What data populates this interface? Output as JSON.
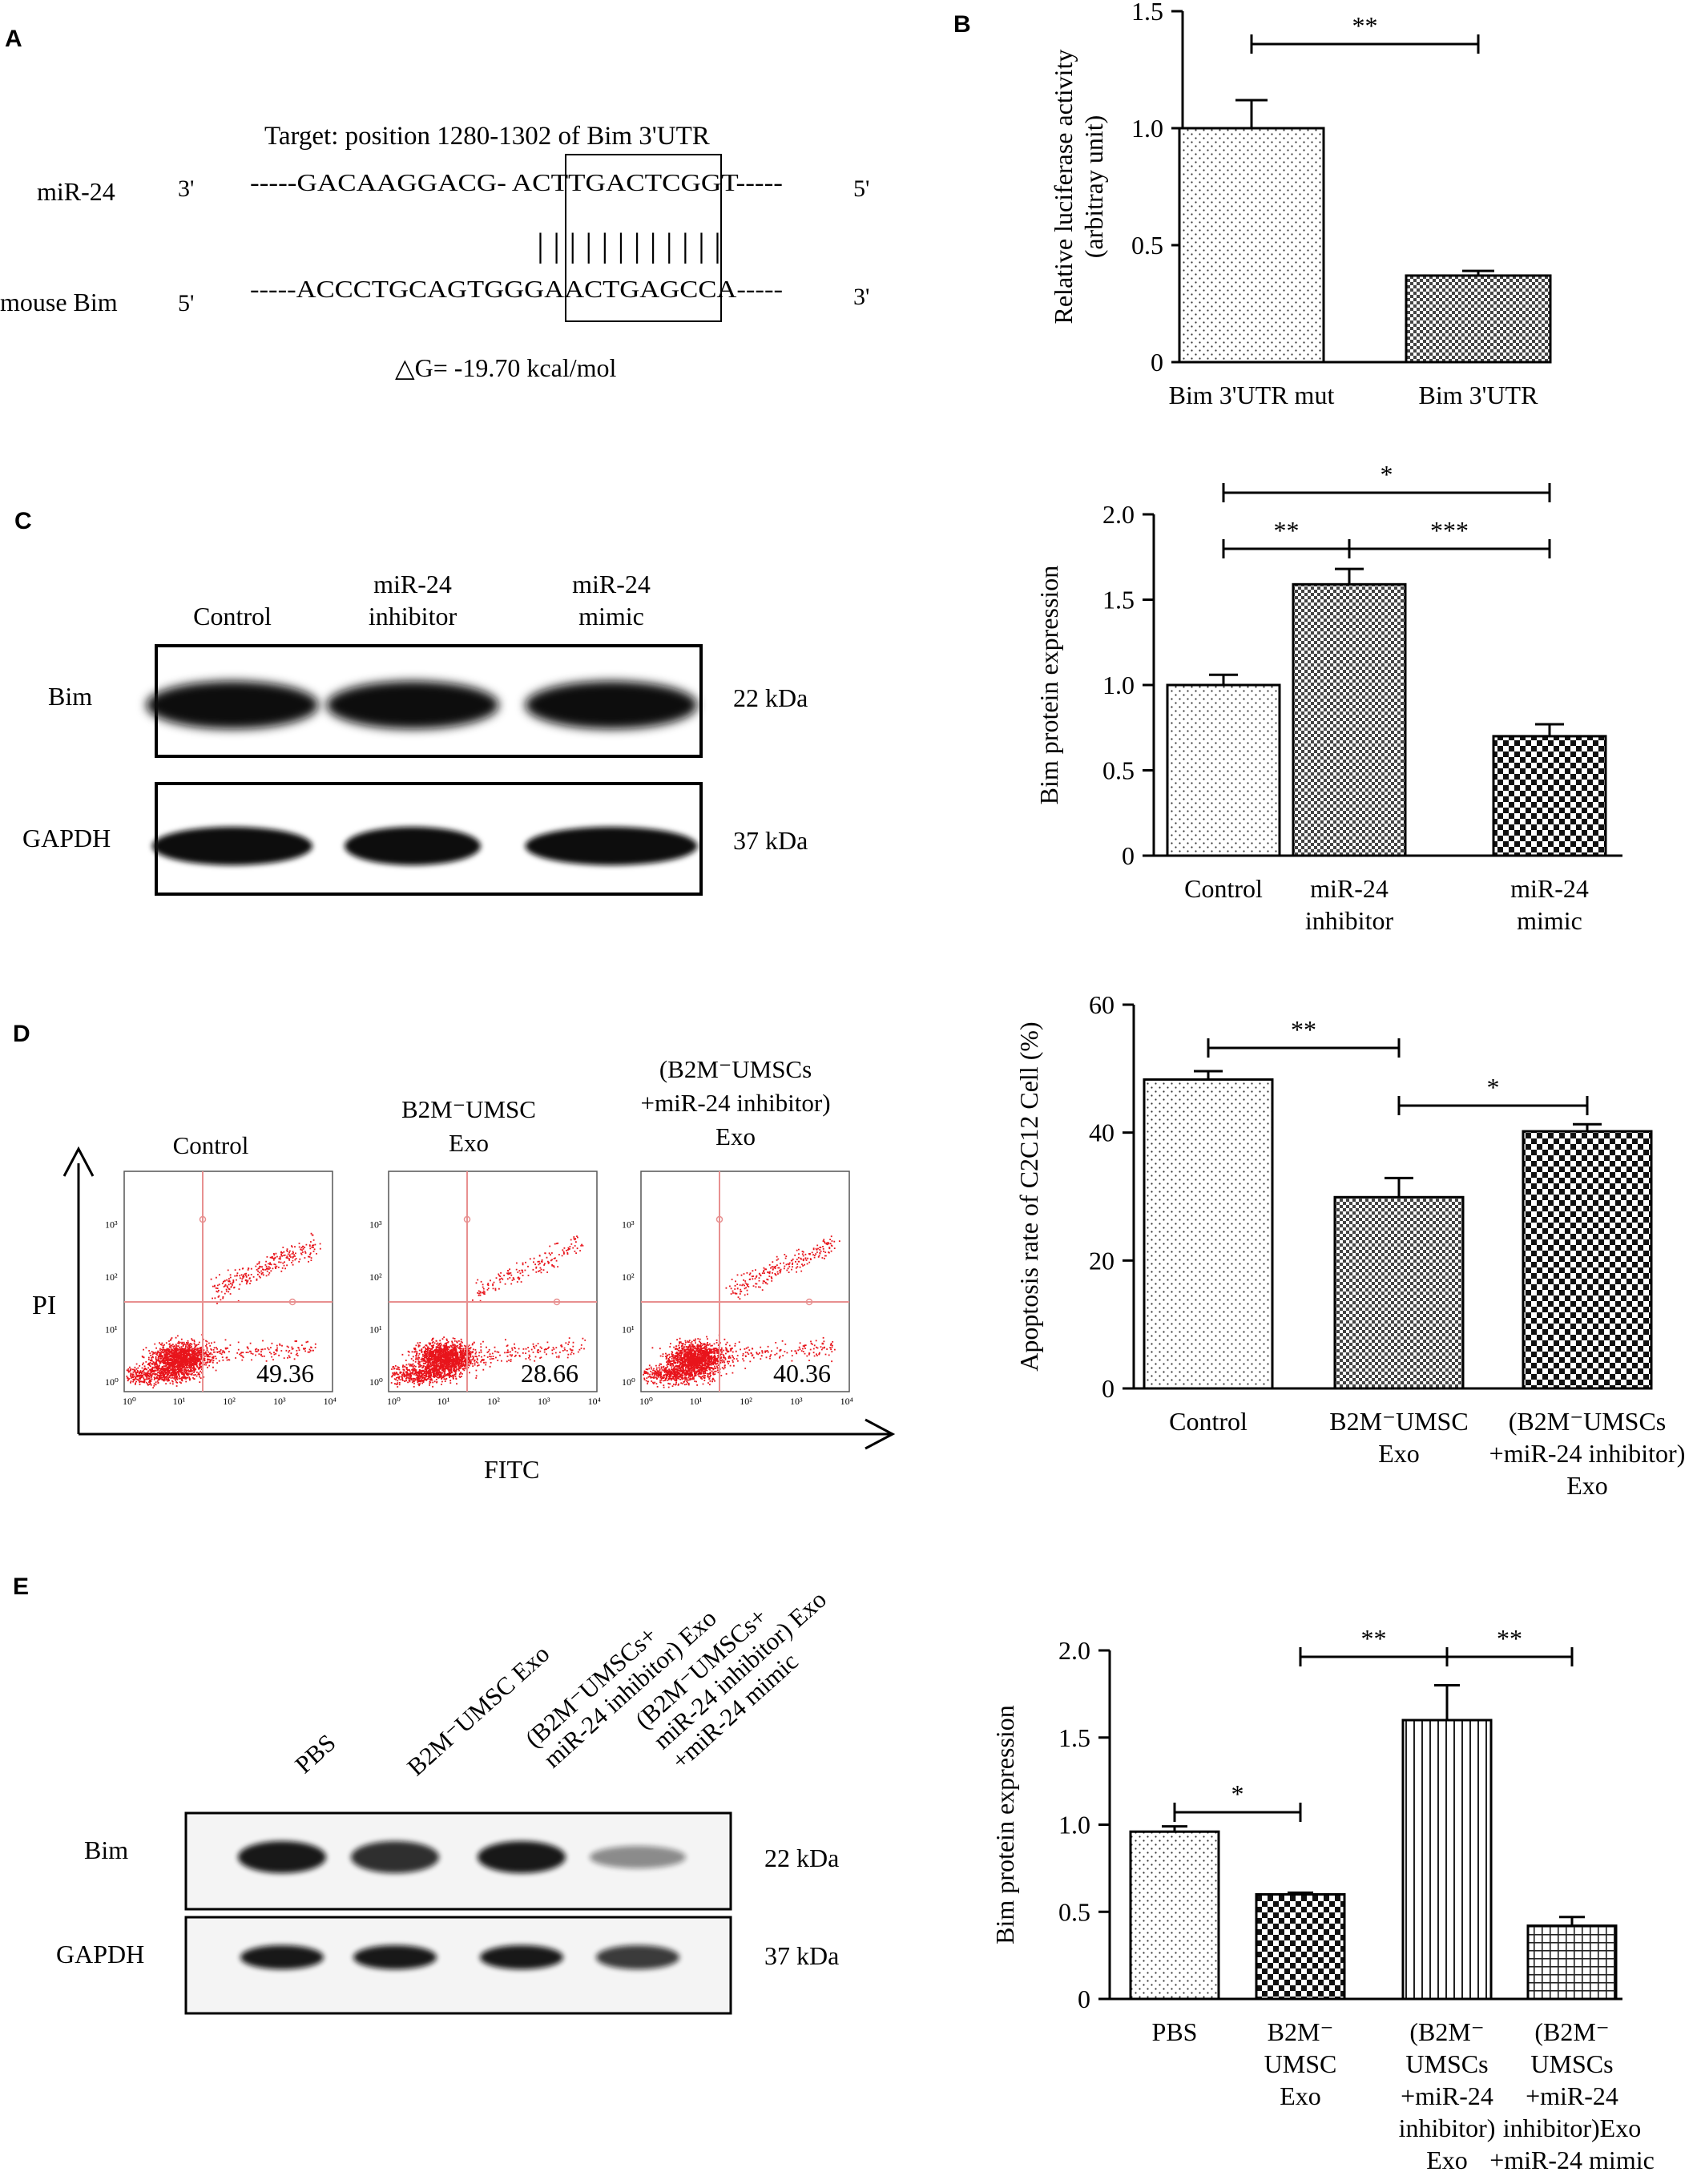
{
  "panels": {
    "A": {
      "label": "A",
      "target": "Target: position  1280-1302  of Bim 3'UTR",
      "mir_name": "miR-24",
      "mir_end_left": "3'",
      "mir_seq": "-----GACAAGGACG-  ACTTGACTCGGT-----",
      "mir_end_right": "5'",
      "bim_name": "mouse Bim",
      "bim_end_left": "5'",
      "bim_seq": "-----ACCCTGCAGTGGGAACTGAGCCA-----",
      "bim_end_right": "3'",
      "pairing": "|  |  |  |  |  |  |  |  |  |  |  |",
      "dg": "△G= -19.70  kcal/mol"
    },
    "C_blot": {
      "label": "C",
      "lanes": [
        "Control",
        "miR-24\ninhibitor",
        "miR-24\nmimic"
      ],
      "rows": [
        "Bim",
        "GAPDH"
      ],
      "sizes": [
        "22 kDa",
        "37 kDa"
      ],
      "band_color": "#111111"
    },
    "D_flow": {
      "label": "D",
      "titles": [
        "Control",
        "B2M⁻UMSC\nExo",
        "(B2M⁻UMSCs\n+miR-24  inhibitor)\nExo"
      ],
      "values": [
        "49.36",
        "28.66",
        "40.36"
      ],
      "ylabel": "PI",
      "xlabel": "FITC",
      "ticks": [
        "10⁰",
        "10¹",
        "10²",
        "10³",
        "10⁴"
      ],
      "dot_color": "#e8141b",
      "gate_color": "#e89090"
    },
    "E_blot": {
      "label": "E",
      "lanes": [
        "PBS",
        "B2M⁻UMSC Exo",
        "(B2M⁻UMSCs+\nmiR-24 inhibitor) Exo",
        "(B2M⁻UMSCs+\nmiR-24 inhibitor) Exo\n+miR-24 mimic"
      ],
      "rows": [
        "Bim",
        "GAPDH"
      ],
      "sizes": [
        "22 kDa",
        "37 kDa"
      ]
    }
  },
  "chart_data": [
    {
      "panel": "B",
      "label": "B",
      "type": "bar",
      "categories": [
        "Bim 3'UTR mut",
        "Bim 3'UTR"
      ],
      "values": [
        1.0,
        0.37
      ],
      "errors": [
        0.12,
        0.02
      ],
      "ylabel": "Relative luciferase activity\n(arbitray unit)",
      "ylim": [
        0,
        1.5
      ],
      "yticks": [
        "0",
        "0.5",
        "1.0",
        "1.5"
      ],
      "patterns": [
        "dots",
        "check"
      ],
      "significance": [
        {
          "from": 0,
          "to": 1,
          "text": "**"
        }
      ]
    },
    {
      "panel": "C",
      "type": "bar",
      "categories": [
        "Control",
        "miR-24\ninhibitor",
        "miR-24\nmimic"
      ],
      "values": [
        1.0,
        1.59,
        0.7
      ],
      "errors": [
        0.06,
        0.09,
        0.07
      ],
      "ylabel": "Bim protein expression",
      "ylim": [
        0,
        2.0
      ],
      "yticks": [
        "0",
        "0.5",
        "1.0",
        "1.5",
        "2.0"
      ],
      "patterns": [
        "dots",
        "check",
        "checkbold"
      ],
      "significance": [
        {
          "from": 0,
          "to": 2,
          "text": "*"
        },
        {
          "from": 0,
          "to": 1,
          "text": "**"
        },
        {
          "from": 1,
          "to": 2,
          "text": "***"
        }
      ]
    },
    {
      "panel": "D",
      "type": "bar",
      "categories": [
        "Control",
        "B2M⁻UMSC\nExo",
        "(B2M⁻UMSCs\n+miR-24  inhibitor)\nExo"
      ],
      "values": [
        48.3,
        29.9,
        40.2
      ],
      "errors": [
        1.3,
        3.0,
        1.1
      ],
      "ylabel": "Apoptosis rate of C2C12 Cell (%)",
      "ylim": [
        0,
        60
      ],
      "yticks": [
        "0",
        "20",
        "40",
        "60"
      ],
      "patterns": [
        "dots",
        "check",
        "checkbold"
      ],
      "significance": [
        {
          "from": 0,
          "to": 1,
          "text": "**"
        },
        {
          "from": 1,
          "to": 2,
          "text": "*"
        }
      ]
    },
    {
      "panel": "E",
      "type": "bar",
      "categories": [
        "PBS",
        "B2M⁻\nUMSC\nExo",
        "(B2M⁻\nUMSCs\n+miR-24\ninhibitor)\nExo",
        "(B2M⁻\nUMSCs\n+miR-24\ninhibitor)Exo\n+miR-24  mimic"
      ],
      "values": [
        0.96,
        0.6,
        1.6,
        0.42
      ],
      "errors": [
        0.03,
        0.01,
        0.2,
        0.05
      ],
      "ylabel": "Bim protein expression",
      "ylim": [
        0,
        2.0
      ],
      "yticks": [
        "0",
        "0.5",
        "1.0",
        "1.5",
        "2.0"
      ],
      "patterns": [
        "dots",
        "checkbold",
        "vlines",
        "grid"
      ],
      "significance": [
        {
          "from": 0,
          "to": 1,
          "text": "*"
        },
        {
          "from": 1,
          "to": 2,
          "text": "**"
        },
        {
          "from": 2,
          "to": 3,
          "text": "**"
        }
      ]
    }
  ]
}
